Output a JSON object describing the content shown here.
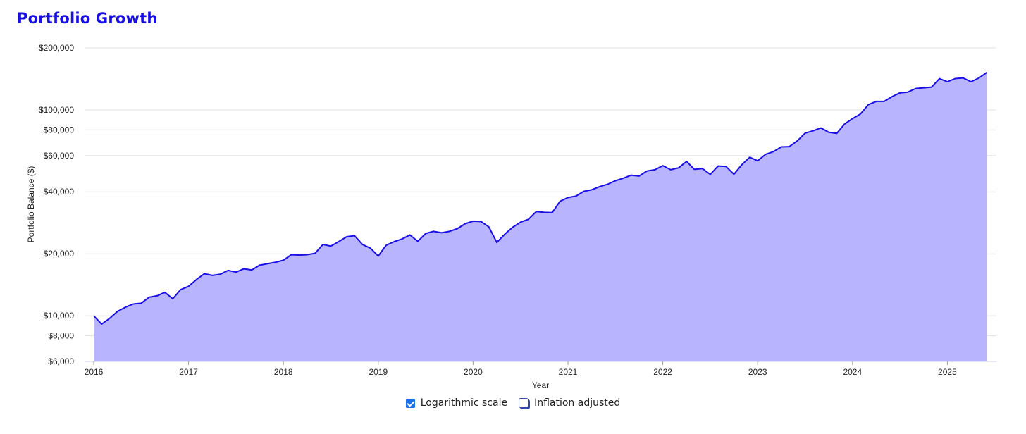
{
  "page": {
    "title": "Portfolio Growth"
  },
  "controls": {
    "log_scale": {
      "label": "Logarithmic scale",
      "checked": true
    },
    "inflation": {
      "label": "Inflation adjusted",
      "checked": false
    }
  },
  "colors": {
    "line": "#1a0ee6",
    "fill": "#b8b4fd",
    "title": "#1a0ee6"
  },
  "chart_data": {
    "type": "area",
    "title": "Portfolio Growth",
    "xlabel": "Year",
    "ylabel": "Portfolio Balance ($)",
    "y_scale": "log",
    "ylim": [
      6000,
      200000
    ],
    "y_ticks": [
      6000,
      8000,
      10000,
      20000,
      40000,
      60000,
      80000,
      100000,
      200000
    ],
    "y_tick_labels": [
      "$6,000",
      "$8,000",
      "$10,000",
      "$20,000",
      "$40,000",
      "$60,000",
      "$80,000",
      "$100,000",
      "$200,000"
    ],
    "x_ticks": [
      "2016",
      "2017",
      "2018",
      "2019",
      "2020",
      "2021",
      "2022",
      "2023",
      "2024",
      "2025"
    ],
    "xlim": [
      "2016-01",
      "2025-06"
    ],
    "grid": true,
    "series": [
      {
        "x": [
          "2016-01",
          "2016-02",
          "2016-03",
          "2016-04",
          "2016-05",
          "2016-06",
          "2016-07",
          "2016-08",
          "2016-09",
          "2016-10",
          "2016-11",
          "2016-12",
          "2017-01",
          "2017-02",
          "2017-03",
          "2017-04",
          "2017-05",
          "2017-06",
          "2017-07",
          "2017-08",
          "2017-09",
          "2017-10",
          "2017-11",
          "2017-12",
          "2018-01",
          "2018-02",
          "2018-03",
          "2018-04",
          "2018-05",
          "2018-06",
          "2018-07",
          "2018-08",
          "2018-09",
          "2018-10",
          "2018-11",
          "2018-12",
          "2019-01",
          "2019-02",
          "2019-03",
          "2019-04",
          "2019-05",
          "2019-06",
          "2019-07",
          "2019-08",
          "2019-09",
          "2019-10",
          "2019-11",
          "2019-12",
          "2020-01",
          "2020-02",
          "2020-03",
          "2020-04",
          "2020-05",
          "2020-06",
          "2020-07",
          "2020-08",
          "2020-09",
          "2020-10",
          "2020-11",
          "2020-12",
          "2021-01",
          "2021-02",
          "2021-03",
          "2021-04",
          "2021-05",
          "2021-06",
          "2021-07",
          "2021-08",
          "2021-09",
          "2021-10",
          "2021-11",
          "2021-12",
          "2022-01",
          "2022-02",
          "2022-03",
          "2022-04",
          "2022-05",
          "2022-06",
          "2022-07",
          "2022-08",
          "2022-09",
          "2022-10",
          "2022-11",
          "2022-12",
          "2023-01",
          "2023-02",
          "2023-03",
          "2023-04",
          "2023-05",
          "2023-06",
          "2023-07",
          "2023-08",
          "2023-09",
          "2023-10",
          "2023-11",
          "2023-12",
          "2024-01",
          "2024-02",
          "2024-03",
          "2024-04",
          "2024-05",
          "2024-06",
          "2024-07",
          "2024-08",
          "2024-09",
          "2024-10",
          "2024-11",
          "2024-12",
          "2025-01",
          "2025-02",
          "2025-03",
          "2025-04",
          "2025-05",
          "2025-06"
        ],
        "values": [
          10000,
          9100,
          9700,
          10500,
          11000,
          11400,
          11500,
          12300,
          12500,
          13000,
          12100,
          13400,
          13900,
          15000,
          16000,
          15700,
          15900,
          16600,
          16300,
          16900,
          16700,
          17600,
          17900,
          18200,
          18600,
          19800,
          19700,
          19800,
          20100,
          22200,
          21800,
          22900,
          24200,
          24500,
          22200,
          21300,
          19500,
          22000,
          22900,
          23600,
          24700,
          23000,
          25100,
          25700,
          25300,
          25700,
          26500,
          28000,
          28800,
          28700,
          27000,
          22700,
          24900,
          26900,
          28500,
          29400,
          32100,
          31800,
          31700,
          36000,
          37500,
          38100,
          40200,
          40900,
          42400,
          43500,
          45300,
          46600,
          48200,
          47700,
          50500,
          51200,
          53600,
          51200,
          52300,
          56200,
          51400,
          51900,
          48600,
          53400,
          53100,
          48700,
          54200,
          58900,
          56600,
          60800,
          62700,
          66100,
          66300,
          70600,
          77100,
          79100,
          81800,
          77900,
          76900,
          85400,
          90700,
          95400,
          106000,
          110000,
          110000,
          116000,
          121000,
          122000,
          127000,
          128000,
          129000,
          142000,
          137000,
          142000,
          143000,
          137000,
          143000,
          152000
        ]
      }
    ]
  }
}
